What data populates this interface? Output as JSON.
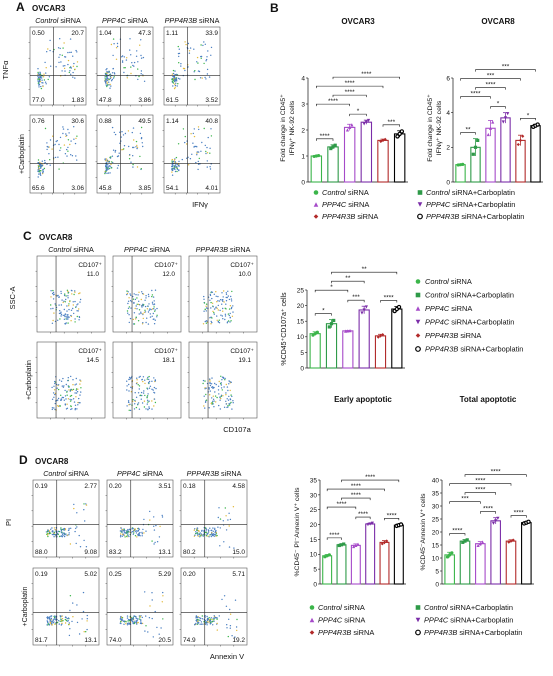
{
  "panels": {
    "A": {
      "letter": "A",
      "cell_line": "OVCAR3",
      "columns": [
        "Control siRNA",
        "PPP4C siRNA",
        "PPP4R3B siRNA"
      ],
      "row_labels": [
        "",
        "+Carboplatin"
      ],
      "xaxis": "IFNγ",
      "yaxis": "TNFα",
      "quadrants": [
        [
          [
            "0.50",
            "20.7",
            "77.0",
            "1.83"
          ],
          [
            "1.04",
            "47.3",
            "47.8",
            "3.86"
          ],
          [
            "1.11",
            "33.9",
            "61.5",
            "3.52"
          ]
        ],
        [
          [
            "0.76",
            "30.6",
            "65.6",
            "3.06"
          ],
          [
            "0.88",
            "49.5",
            "45.8",
            "3.85"
          ],
          [
            "1.14",
            "40.8",
            "54.1",
            "4.01"
          ]
        ]
      ]
    },
    "B": {
      "letter": "B",
      "left_title": "OVCAR3",
      "right_title": "OVCAR8",
      "ylabel_line1": "Fold change in CD45⁺",
      "ylabel_line2": "IFNγ⁺ NK-92 cells",
      "legend": [
        "Control siRNA",
        "Control siRNA+Carboplatin",
        "PPP4C siRNA",
        "PPP4C siRNA+Carboplatin",
        "PPP4R3B siRNA",
        "PPP4R3B siRNA+Carboplatin"
      ]
    },
    "C": {
      "letter": "C",
      "cell_line": "OVCAR8",
      "columns": [
        "Control siRNA",
        "PPP4C siRNA",
        "PPP4R3B siRNA"
      ],
      "row_labels": [
        "",
        "+Carboplatin"
      ],
      "xaxis": "CD107a",
      "yaxis": "SSC-A",
      "gate_label": "CD107⁺",
      "gate_values": [
        [
          "11.0",
          "12.0",
          "10.0"
        ],
        [
          "14.5",
          "18.1",
          "19.1"
        ]
      ],
      "ylabel": "%CD45⁺CD107a⁺ cells",
      "legend": [
        "Control siRNA",
        "Control siRNA+Carboplatin",
        "PPP4C siRNA",
        "PPP4C siRNA+Carboplatin",
        "PPP4R3B siRNA",
        "PPP4R3B siRNA+Carboplatin"
      ]
    },
    "D": {
      "letter": "D",
      "cell_line": "OVCAR8",
      "columns": [
        "Control siRNA",
        "PPP4C siRNA",
        "PPP4R3B siRNA"
      ],
      "row_labels": [
        "",
        "+Carboplatin"
      ],
      "xaxis": "Annexin V",
      "yaxis": "PI",
      "quadrants": [
        [
          [
            "0.19",
            "2.77",
            "88.0",
            "9.08"
          ],
          [
            "0.20",
            "3.51",
            "83.2",
            "13.1"
          ],
          [
            "0.18",
            "4.58",
            "80.2",
            "15.0"
          ]
        ],
        [
          [
            "0.19",
            "5.02",
            "81.7",
            "13.1"
          ],
          [
            "0.25",
            "5.29",
            "74.0",
            "20.5"
          ],
          [
            "0.20",
            "5.71",
            "74.9",
            "19.2"
          ]
        ]
      ],
      "early_title": "Early apoptotic",
      "total_title": "Total apoptotic",
      "early_ylabel": "%CD45⁻ PI⁻Annexin V⁺ cells",
      "total_ylabel": "%CD45⁻Annexin V⁺ cells",
      "legend": [
        "Control siRNA",
        "Control siRNA+Carboplatin",
        "PPP4C siRNA",
        "PPP4C siRNA+Carboplatin",
        "PPP4R3B siRNA",
        "PPP4R3B siRNA+Carboplatin"
      ]
    }
  },
  "colors": {
    "control": "#3bb54a",
    "control_carbo": "#2e9a48",
    "ppp4c": "#a64ac9",
    "ppp4c_carbo": "#7b2da8",
    "ppp4r3b": "#b22a2a",
    "ppp4r3b_carbo": "#000000"
  },
  "chart_data": [
    {
      "id": "B-OVCAR3",
      "type": "bar",
      "title": "OVCAR3",
      "ylabel": "Fold change in CD45⁺ IFNγ⁺ NK-92 cells",
      "categories": [
        "Control siRNA",
        "Control siRNA+Carboplatin",
        "PPP4C siRNA",
        "PPP4C siRNA+Carboplatin",
        "PPP4R3B siRNA",
        "PPP4R3B siRNA+Carboplatin"
      ],
      "values": [
        1.0,
        1.35,
        2.1,
        2.3,
        1.6,
        1.85
      ],
      "errors": [
        0.02,
        0.08,
        0.12,
        0.08,
        0.05,
        0.12
      ],
      "ylim": [
        0,
        4
      ],
      "yticks": [
        0,
        1,
        2,
        3,
        4
      ],
      "significance": [
        {
          "pair": [
            0,
            1
          ],
          "label": "****"
        },
        {
          "pair": [
            2,
            3
          ],
          "label": "*"
        },
        {
          "pair": [
            4,
            5
          ],
          "label": "***"
        },
        {
          "pair": [
            0,
            2
          ],
          "label": "****"
        },
        {
          "pair": [
            1,
            3
          ],
          "label": "****"
        },
        {
          "pair": [
            0,
            4
          ],
          "label": "****"
        },
        {
          "pair": [
            1,
            5
          ],
          "label": "****"
        }
      ]
    },
    {
      "id": "B-OVCAR8",
      "type": "bar",
      "title": "OVCAR8",
      "ylabel": "Fold change in CD45⁺ IFNγ⁺ NK-92 cells",
      "categories": [
        "Control siRNA",
        "Control siRNA+Carboplatin",
        "PPP4C siRNA",
        "PPP4C siRNA+Carboplatin",
        "PPP4R3B siRNA",
        "PPP4R3B siRNA+Carboplatin"
      ],
      "values": [
        1.0,
        2.0,
        3.1,
        3.7,
        2.4,
        3.25
      ],
      "errors": [
        0.02,
        0.5,
        0.45,
        0.3,
        0.3,
        0.08
      ],
      "ylim": [
        0,
        6
      ],
      "yticks": [
        0,
        2,
        4,
        6
      ],
      "significance": [
        {
          "pair": [
            0,
            1
          ],
          "label": "**"
        },
        {
          "pair": [
            2,
            3
          ],
          "label": "*"
        },
        {
          "pair": [
            4,
            5
          ],
          "label": "*"
        },
        {
          "pair": [
            0,
            2
          ],
          "label": "****"
        },
        {
          "pair": [
            1,
            3
          ],
          "label": "****"
        },
        {
          "pair": [
            0,
            4
          ],
          "label": "***"
        },
        {
          "pair": [
            1,
            5
          ],
          "label": "***"
        }
      ]
    },
    {
      "id": "C",
      "type": "bar",
      "ylabel": "%CD45⁺CD107a⁺ cells",
      "categories": [
        "Control siRNA",
        "Control siRNA+Carboplatin",
        "PPP4C siRNA",
        "PPP4C siRNA+Carboplatin",
        "PPP4R3B siRNA",
        "PPP4R3B siRNA+Carboplatin"
      ],
      "values": [
        11.0,
        14.2,
        11.9,
        18.6,
        10.3,
        18.9
      ],
      "errors": [
        0.6,
        1.3,
        0.1,
        1.2,
        0.5,
        0.8
      ],
      "ylim": [
        0,
        25
      ],
      "yticks": [
        0,
        5,
        10,
        15,
        20,
        25
      ],
      "significance": [
        {
          "pair": [
            0,
            1
          ],
          "label": "*"
        },
        {
          "pair": [
            2,
            3
          ],
          "label": "***"
        },
        {
          "pair": [
            4,
            5
          ],
          "label": "****"
        },
        {
          "pair": [
            0,
            2
          ],
          "label": "*"
        },
        {
          "pair": [
            1,
            3
          ],
          "label": "**"
        },
        {
          "pair": [
            1,
            5
          ],
          "label": "**"
        }
      ]
    },
    {
      "id": "D-early",
      "type": "bar",
      "title": "Early apoptotic",
      "ylabel": "%CD45⁻ PI⁻Annexin V⁺ cells",
      "categories": [
        "Control siRNA",
        "Control siRNA+Carboplatin",
        "PPP4C siRNA",
        "PPP4C siRNA+Carboplatin",
        "PPP4R3B siRNA",
        "PPP4R3B siRNA+Carboplatin"
      ],
      "values": [
        9.5,
        13.2,
        13.0,
        20.2,
        14.0,
        19.8
      ],
      "errors": [
        0.4,
        0.3,
        0.5,
        0.3,
        0.6,
        0.3
      ],
      "ylim": [
        0,
        35
      ],
      "yticks": [
        0,
        5,
        10,
        15,
        20,
        25,
        30,
        35
      ],
      "significance": [
        {
          "pair": [
            0,
            1
          ],
          "label": "****"
        },
        {
          "pair": [
            2,
            3
          ],
          "label": "****"
        },
        {
          "pair": [
            4,
            5
          ],
          "label": "****"
        },
        {
          "pair": [
            0,
            2
          ],
          "label": "****"
        },
        {
          "pair": [
            1,
            3
          ],
          "label": "****"
        },
        {
          "pair": [
            0,
            4
          ],
          "label": "****"
        },
        {
          "pair": [
            1,
            5
          ],
          "label": "****"
        }
      ]
    },
    {
      "id": "D-total",
      "type": "bar",
      "title": "Total apoptotic",
      "ylabel": "%CD45⁻Annexin V⁺ cells",
      "categories": [
        "Control siRNA",
        "Control siRNA+Carboplatin",
        "PPP4C siRNA",
        "PPP4C siRNA+Carboplatin",
        "PPP4R3B siRNA",
        "PPP4R3B siRNA+Carboplatin"
      ],
      "values": [
        11.2,
        16.5,
        15.5,
        24.3,
        16.5,
        23.6
      ],
      "errors": [
        1.0,
        0.6,
        0.8,
        1.2,
        0.5,
        0.4
      ],
      "ylim": [
        0,
        40
      ],
      "yticks": [
        0,
        5,
        10,
        15,
        20,
        25,
        30,
        35,
        40
      ],
      "significance": [
        {
          "pair": [
            0,
            1
          ],
          "label": "****"
        },
        {
          "pair": [
            2,
            3
          ],
          "label": "****"
        },
        {
          "pair": [
            4,
            5
          ],
          "label": "****"
        },
        {
          "pair": [
            0,
            2
          ],
          "label": "***"
        },
        {
          "pair": [
            1,
            3
          ],
          "label": "****"
        },
        {
          "pair": [
            0,
            4
          ],
          "label": "****"
        },
        {
          "pair": [
            1,
            5
          ],
          "label": "****"
        }
      ]
    }
  ]
}
